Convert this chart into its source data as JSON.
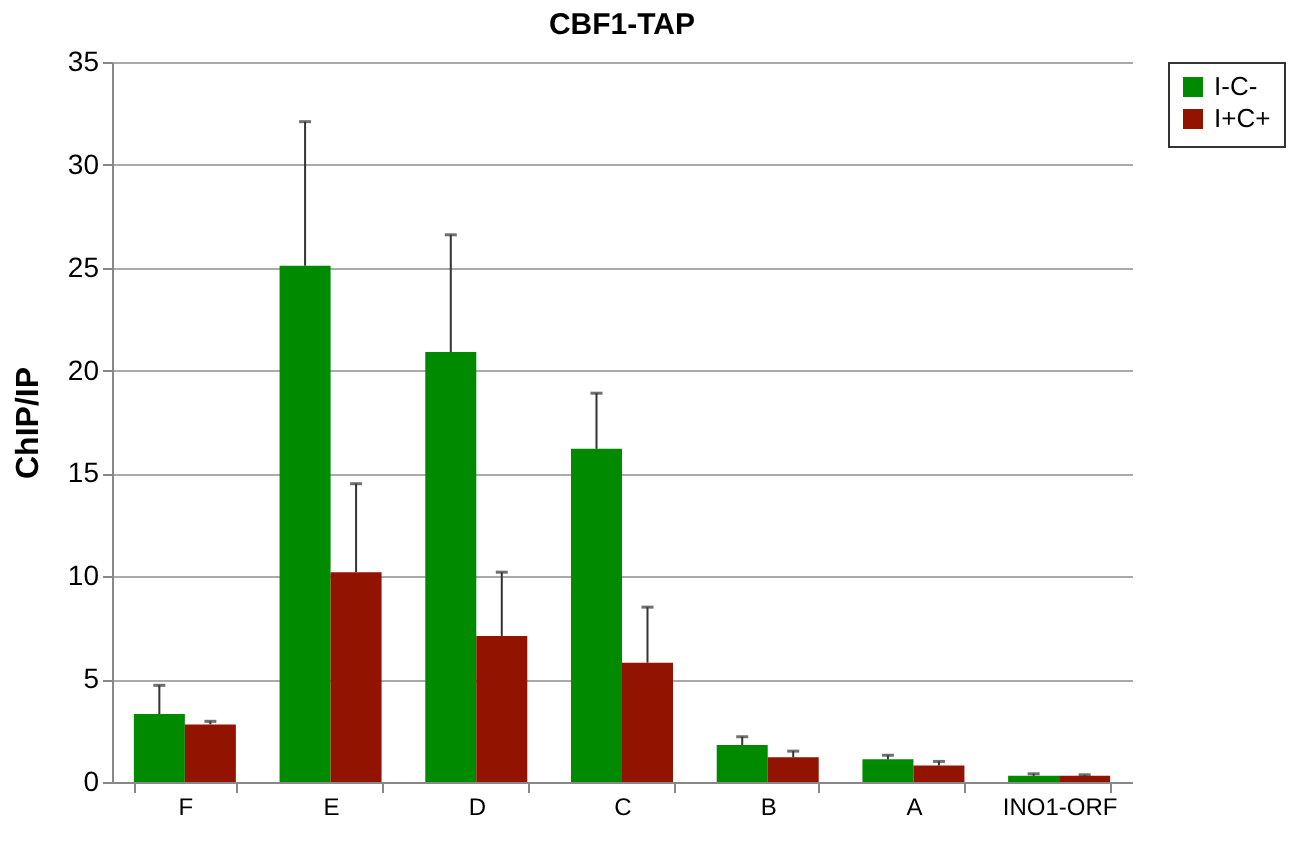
{
  "chart_data": {
    "type": "bar",
    "title": "CBF1-TAP",
    "ylabel": "ChIP/IP",
    "categories": [
      "F",
      "E",
      "D",
      "C",
      "B",
      "A",
      "INO1-ORF"
    ],
    "series": [
      {
        "name": "I-C-",
        "color": "#008a00",
        "values": [
          3.3,
          25.1,
          20.9,
          16.2,
          1.8,
          1.1,
          0.3
        ],
        "errors": [
          [
            3.3,
            4.7
          ],
          [
            25.1,
            32.1
          ],
          [
            20.9,
            26.6
          ],
          [
            16.2,
            18.9
          ],
          [
            1.8,
            2.2
          ],
          [
            1.1,
            1.3
          ],
          [
            0.3,
            0.4
          ]
        ]
      },
      {
        "name": "I+C+",
        "color": "#921400",
        "values": [
          2.8,
          10.2,
          7.1,
          5.8,
          1.2,
          0.8,
          0.3
        ],
        "errors": [
          [
            2.8,
            2.95
          ],
          [
            10.2,
            14.5
          ],
          [
            7.1,
            10.2
          ],
          [
            5.8,
            8.5
          ],
          [
            1.2,
            1.5
          ],
          [
            0.8,
            1.0
          ],
          [
            0.3,
            0.35
          ]
        ]
      }
    ],
    "ylim": [
      0,
      35
    ],
    "yticks": [
      0,
      5,
      10,
      15,
      20,
      25,
      30,
      35
    ],
    "grid": "y",
    "legend": "right"
  }
}
